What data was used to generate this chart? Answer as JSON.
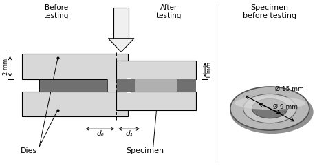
{
  "bg_color": "#ffffff",
  "fig_width": 4.74,
  "fig_height": 2.41,
  "dpi": 100,
  "labels": {
    "before_testing": "Before\ntesting",
    "after_testing": "After\ntesting",
    "specimen_before": "Specimen\nbefore testing",
    "dies": "Dies",
    "specimen": "Specimen",
    "d0": "d₀",
    "d1": "d₁",
    "dim_2mm": "2 mm",
    "dim_1mm": "1 mm",
    "dim_15mm": "Ø 15 mm",
    "dim_9mm": "Ø 9 mm"
  },
  "colors": {
    "light_gray": "#d8d8d8",
    "medium_gray": "#b0b0b0",
    "dark_gray": "#707070",
    "specimen_gray": "#909090",
    "white": "#ffffff",
    "black": "#000000",
    "arrow_white": "#f0f0f0",
    "ring_body": "#b8b8b8",
    "ring_mid": "#a0a0a0",
    "ring_hole": "#888888",
    "ring_shadow": "#888888"
  }
}
